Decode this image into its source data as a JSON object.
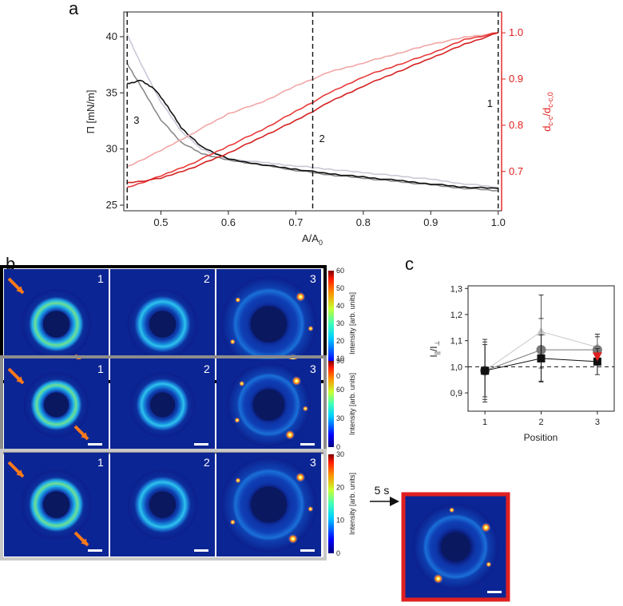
{
  "panels": {
    "a": "a",
    "b": "b",
    "c": "c"
  },
  "chart_data": [
    {
      "id": "a",
      "type": "line",
      "xlabel": "A/A0",
      "xlabel_main": "A/A",
      "xlabel_sub": "0",
      "ylabel_left": "Π [mN/m]",
      "ylabel_right_main": "d",
      "ylabel_right_sub1": "c-c",
      "ylabel_right_slash": "/d",
      "ylabel_right_sub2": "c-c,0",
      "xlim": [
        0.445,
        1.005
      ],
      "ylim_left": [
        24.5,
        42.2
      ],
      "ylim_right": [
        0.615,
        1.045
      ],
      "xticks": [
        "0.5",
        "0.6",
        "0.7",
        "0.8",
        "0.9",
        "1.0"
      ],
      "xtick_values": [
        0.5,
        0.6,
        0.7,
        0.8,
        0.9,
        1.0
      ],
      "yticks_left": [
        "25",
        "30",
        "35",
        "40"
      ],
      "ytick_left_values": [
        25,
        30,
        35,
        40
      ],
      "yticks_right": [
        "0.7",
        "0.8",
        "0.9",
        "1.0"
      ],
      "ytick_right_values": [
        0.7,
        0.8,
        0.9,
        1.0
      ],
      "markers": [
        {
          "x": 0.45,
          "label": "3"
        },
        {
          "x": 0.725,
          "label": "2"
        },
        {
          "x": 1.0,
          "label": "1"
        }
      ],
      "series": [
        {
          "name": "pressure-light",
          "axis": "left",
          "color": "#c9c9d8",
          "x": [
            0.45,
            0.47,
            0.5,
            0.53,
            0.56,
            0.6,
            0.65,
            0.7,
            0.75,
            0.8,
            0.85,
            0.9,
            0.95,
            1.0
          ],
          "y": [
            40.2,
            37.6,
            34.2,
            31.6,
            30.0,
            29.1,
            28.8,
            28.5,
            28.2,
            27.9,
            27.6,
            27.3,
            26.9,
            26.6
          ]
        },
        {
          "name": "pressure-gray",
          "axis": "left",
          "color": "#8a8a8a",
          "x": [
            0.45,
            0.47,
            0.5,
            0.53,
            0.56,
            0.6,
            0.65,
            0.7,
            0.75,
            0.8,
            0.85,
            0.9,
            0.95,
            1.0
          ],
          "y": [
            37.6,
            35.6,
            32.6,
            30.6,
            29.6,
            29.0,
            28.6,
            28.1,
            27.7,
            27.4,
            27.1,
            26.8,
            26.5,
            26.3
          ]
        },
        {
          "name": "pressure-black",
          "axis": "left",
          "color": "#111111",
          "x": [
            0.45,
            0.47,
            0.49,
            0.51,
            0.53,
            0.56,
            0.6,
            0.65,
            0.7,
            0.75,
            0.8,
            0.85,
            0.9,
            0.95,
            1.0
          ],
          "y": [
            35.8,
            36.1,
            35.4,
            33.8,
            31.9,
            30.2,
            29.1,
            28.6,
            28.2,
            27.8,
            27.5,
            27.2,
            26.9,
            26.6,
            26.5
          ]
        },
        {
          "name": "distance-pink",
          "axis": "right",
          "color": "#f2a6a6",
          "x": [
            0.45,
            0.5,
            0.55,
            0.6,
            0.65,
            0.7,
            0.75,
            0.8,
            0.85,
            0.9,
            0.95,
            1.0
          ],
          "y": [
            0.71,
            0.745,
            0.785,
            0.825,
            0.85,
            0.885,
            0.915,
            0.935,
            0.955,
            0.975,
            0.99,
            1.0
          ]
        },
        {
          "name": "distance-red",
          "axis": "right",
          "color": "#e83a3a",
          "x": [
            0.45,
            0.5,
            0.55,
            0.6,
            0.65,
            0.7,
            0.75,
            0.8,
            0.85,
            0.9,
            0.95,
            1.0
          ],
          "y": [
            0.665,
            0.69,
            0.72,
            0.755,
            0.79,
            0.83,
            0.87,
            0.905,
            0.93,
            0.955,
            0.985,
            1.0
          ]
        },
        {
          "name": "distance-darkred",
          "axis": "right",
          "color": "#d42020",
          "x": [
            0.45,
            0.5,
            0.55,
            0.6,
            0.65,
            0.7,
            0.75,
            0.8,
            0.85,
            0.9,
            0.95,
            1.0
          ],
          "y": [
            0.675,
            0.685,
            0.71,
            0.74,
            0.775,
            0.81,
            0.85,
            0.885,
            0.915,
            0.945,
            0.975,
            1.0
          ]
        }
      ]
    },
    {
      "id": "c",
      "type": "line",
      "xlabel": "Position",
      "ylabel": "I||/I⊥",
      "ylabel_main": "I",
      "ylabel_sub1": "||",
      "ylabel_slash": "/I",
      "ylabel_sub2": "⊥",
      "xlim": [
        0.7,
        3.3
      ],
      "ylim": [
        0.83,
        1.31
      ],
      "xticks": [
        "1",
        "2",
        "3"
      ],
      "xtick_values": [
        1,
        2,
        3
      ],
      "yticks": [
        "0,9",
        "1,0",
        "1,1",
        "1,2",
        "1,3"
      ],
      "ytick_values": [
        0.9,
        1.0,
        1.1,
        1.2,
        1.3
      ],
      "reference_y": 1.0,
      "series": [
        {
          "name": "light-triangles",
          "color": "#c8c8c8",
          "marker": "triangle",
          "x": [
            1,
            2,
            3
          ],
          "y": [
            0.985,
            1.135,
            1.075
          ],
          "err": [
            0.12,
            0.14,
            0.05
          ]
        },
        {
          "name": "gray-circles",
          "color": "#7a7a7a",
          "marker": "circle",
          "x": [
            1,
            2,
            3
          ],
          "y": [
            0.985,
            1.065,
            1.065
          ],
          "err": [
            0.11,
            0.12,
            0.05
          ]
        },
        {
          "name": "black-squares",
          "color": "#111111",
          "marker": "square",
          "x": [
            1,
            2,
            3
          ],
          "y": [
            0.985,
            1.032,
            1.02
          ],
          "err": [
            0.1,
            0.09,
            0.05
          ]
        }
      ],
      "highlight": {
        "x": 3,
        "y": 1.04,
        "color": "#e02020",
        "marker": "triangle-down"
      }
    }
  ],
  "micrographs": {
    "rows": [
      {
        "border": "#000000",
        "labels": [
          "1",
          "2",
          "3"
        ],
        "cbar_max": "60",
        "cbar_ticks": [
          "0",
          "10",
          "20",
          "30",
          "40",
          "50",
          "60"
        ]
      },
      {
        "border": "#8c8c8c",
        "labels": [
          "1",
          "2",
          "3"
        ],
        "cbar_max": "90",
        "cbar_ticks": [
          "0",
          "30",
          "60",
          "90"
        ]
      },
      {
        "border": "#c8c8c8",
        "labels": [
          "1",
          "2",
          "3"
        ],
        "cbar_max": "30",
        "cbar_ticks": [
          "0",
          "10",
          "20",
          "30"
        ]
      }
    ],
    "cbar_label": "Intensity [arb. units]",
    "time_label": "5 s",
    "extra_border": "#e02020"
  }
}
